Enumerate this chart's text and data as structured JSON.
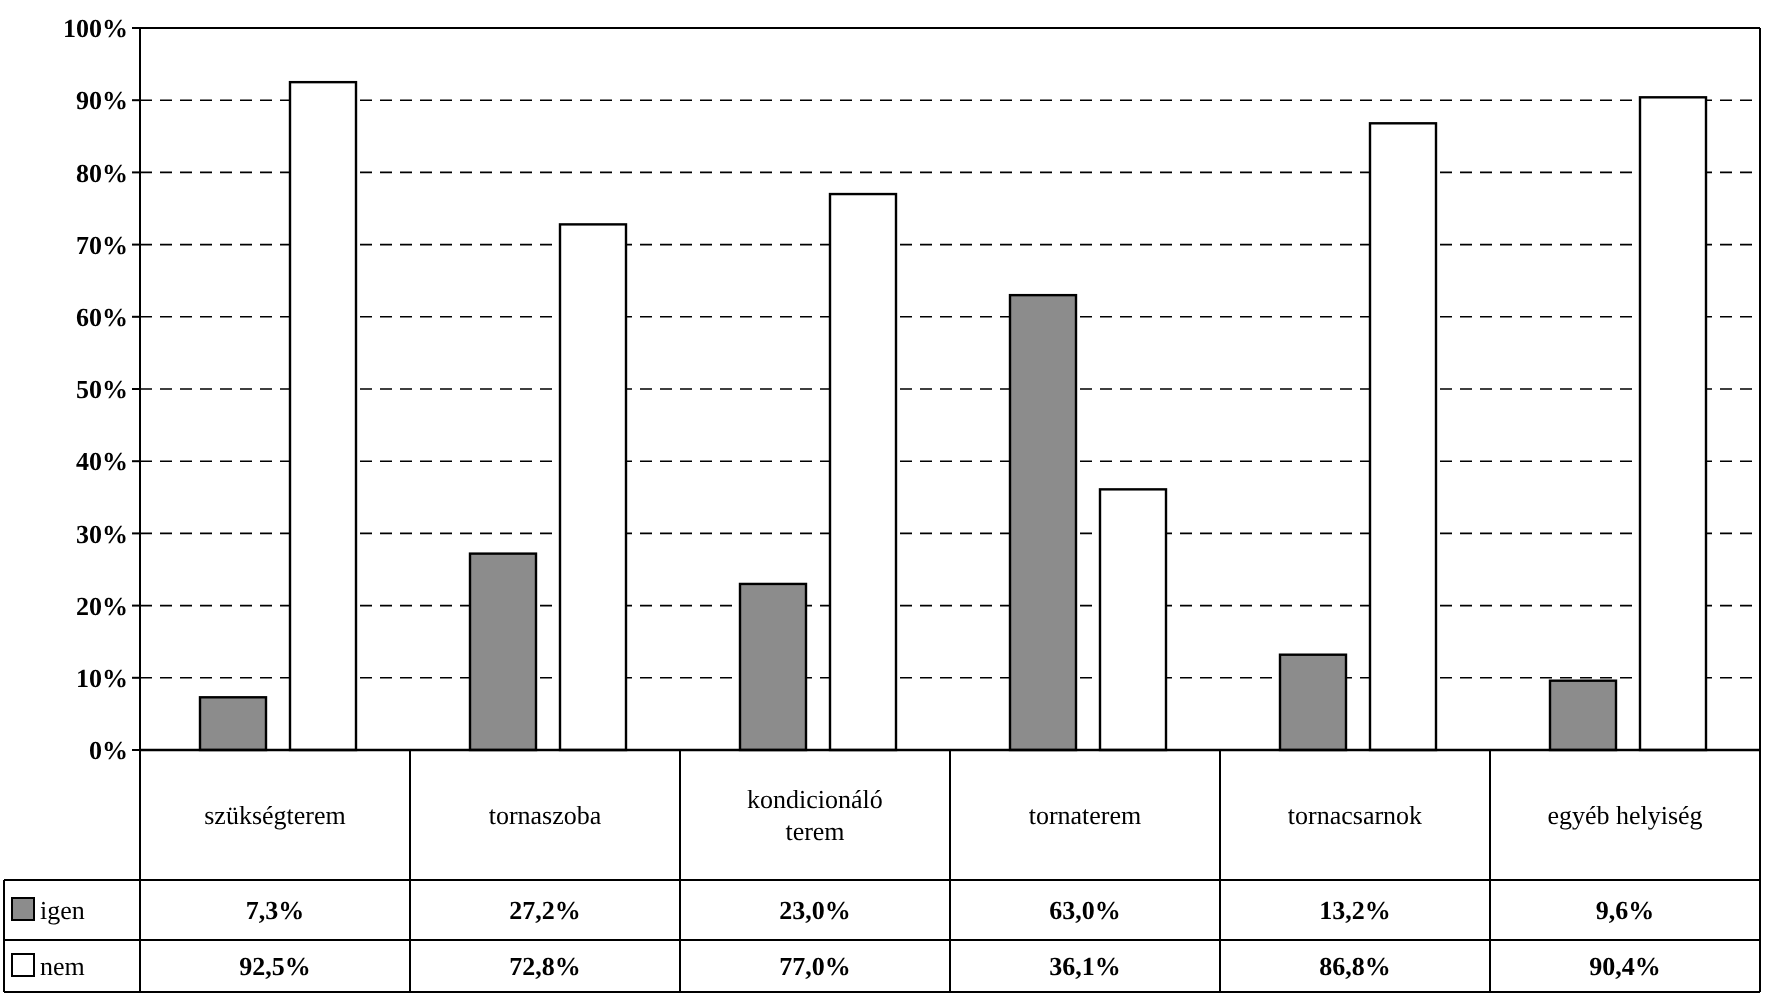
{
  "chart_data": {
    "type": "bar",
    "categories": [
      "szükségterem",
      "tornaszoba",
      "kondicionáló terem",
      "tornaterem",
      "tornacsarnok",
      "egyéb helyiség"
    ],
    "series": [
      {
        "name": "igen",
        "color": "#8c8c8c",
        "values": [
          7.3,
          27.2,
          23.0,
          63.0,
          13.2,
          9.6
        ],
        "value_labels": [
          "7,3%",
          "27,2%",
          "23,0%",
          "63,0%",
          "13,2%",
          "9,6%"
        ]
      },
      {
        "name": "nem",
        "color": "#ffffff",
        "values": [
          92.5,
          72.8,
          77.0,
          36.1,
          86.8,
          90.4
        ],
        "value_labels": [
          "92,5%",
          "72,8%",
          "77,0%",
          "36,1%",
          "86,8%",
          "90,4%"
        ]
      }
    ],
    "ylim": [
      0,
      100
    ],
    "yticks": [
      {
        "value": 0,
        "label": "0%"
      },
      {
        "value": 10,
        "label": "10%"
      },
      {
        "value": 20,
        "label": "20%"
      },
      {
        "value": 30,
        "label": "30%"
      },
      {
        "value": 40,
        "label": "40%"
      },
      {
        "value": 50,
        "label": "50%"
      },
      {
        "value": 60,
        "label": "60%"
      },
      {
        "value": 70,
        "label": "70%"
      },
      {
        "value": 80,
        "label": "80%"
      },
      {
        "value": 90,
        "label": "90%"
      },
      {
        "value": 100,
        "label": "100%"
      }
    ],
    "grid": "y",
    "legend": "bottom"
  }
}
